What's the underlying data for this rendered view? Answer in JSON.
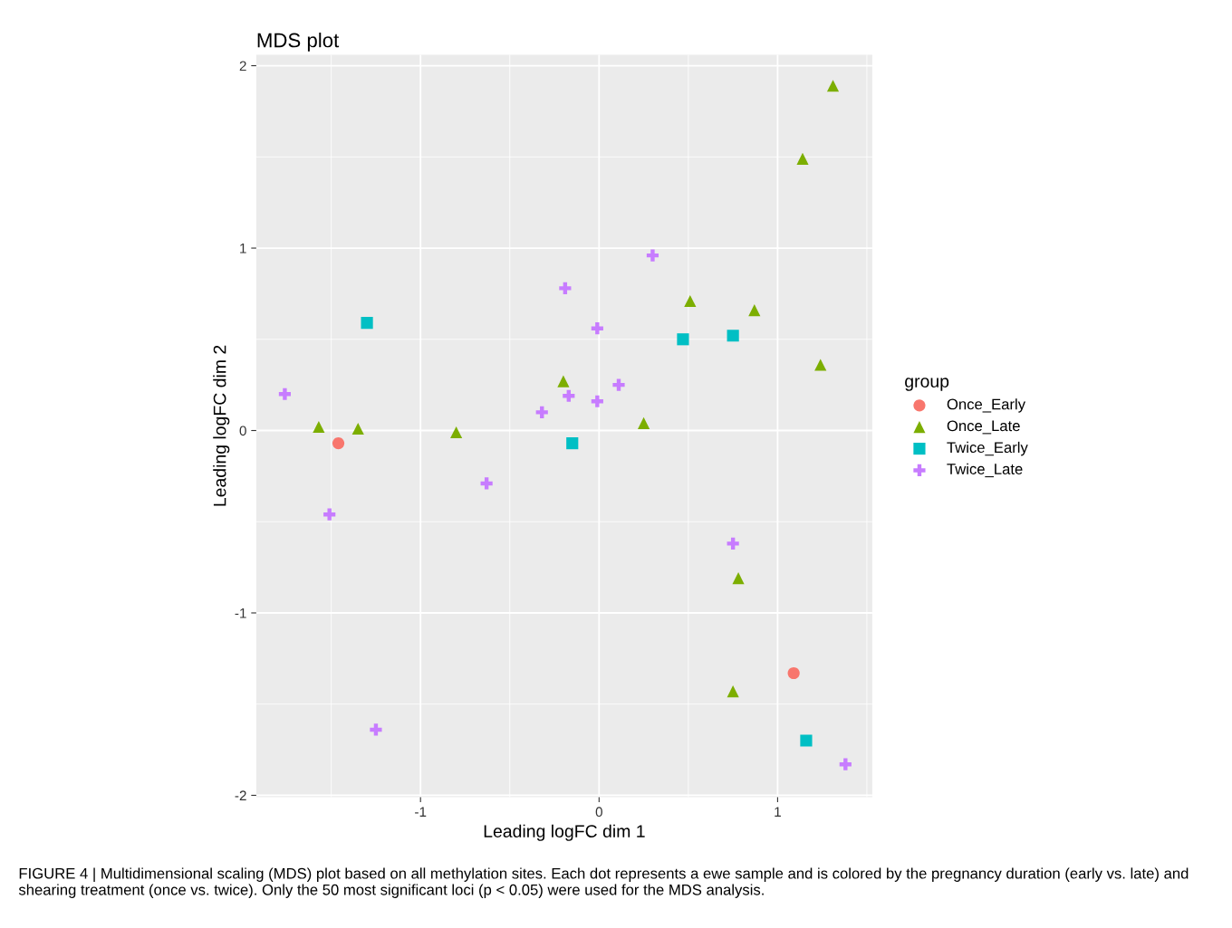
{
  "chart_data": {
    "type": "scatter",
    "title": "MDS plot",
    "xlabel": "Leading logFC dim 1",
    "ylabel": "Leading logFC dim 2",
    "legend_title": "group",
    "legend": "right",
    "grid": true,
    "xlim": [
      -1.92,
      1.53
    ],
    "ylim": [
      -2.01,
      2.06
    ],
    "xticks": [
      -1,
      0,
      1
    ],
    "yticks": [
      -2,
      -1,
      0,
      1,
      2
    ],
    "series": [
      {
        "name": "Once_Early",
        "color": "#f8766d",
        "marker": "circle",
        "x": [
          -1.46,
          1.09
        ],
        "values": [
          -0.07,
          -1.33
        ]
      },
      {
        "name": "Once_Late",
        "color": "#7cae00",
        "marker": "triangle",
        "x": [
          1.31,
          1.14,
          0.51,
          0.87,
          1.24,
          -0.2,
          0.25,
          -1.57,
          -1.35,
          -0.8,
          0.78,
          0.75
        ],
        "values": [
          1.89,
          1.49,
          0.71,
          0.66,
          0.36,
          0.27,
          0.04,
          0.02,
          0.01,
          -0.01,
          -0.81,
          -1.43
        ]
      },
      {
        "name": "Twice_Early",
        "color": "#00bfc4",
        "marker": "square",
        "x": [
          -1.3,
          0.47,
          0.75,
          -0.15,
          1.16
        ],
        "values": [
          0.59,
          0.5,
          0.52,
          -0.07,
          -1.7
        ]
      },
      {
        "name": "Twice_Late",
        "color": "#c77cff",
        "marker": "cross",
        "x": [
          -1.76,
          -1.51,
          -1.25,
          -0.63,
          -0.32,
          -0.17,
          -0.19,
          -0.01,
          -0.01,
          0.11,
          0.3,
          0.75,
          1.38
        ],
        "values": [
          0.2,
          -0.46,
          -1.64,
          -0.29,
          0.1,
          0.19,
          0.78,
          0.56,
          0.16,
          0.25,
          0.96,
          -0.62,
          -1.83
        ]
      }
    ],
    "annotations": [
      "FIGURE 4 | Multidimensional scaling (MDS) plot based on all methylation sites. Each dot represents a ewe sample and is colored by the pregnancy duration (early vs. late) and shearing treatment (once vs. twice). Only the 50 most significant loci (p < 0.05) were used for the MDS analysis."
    ]
  }
}
